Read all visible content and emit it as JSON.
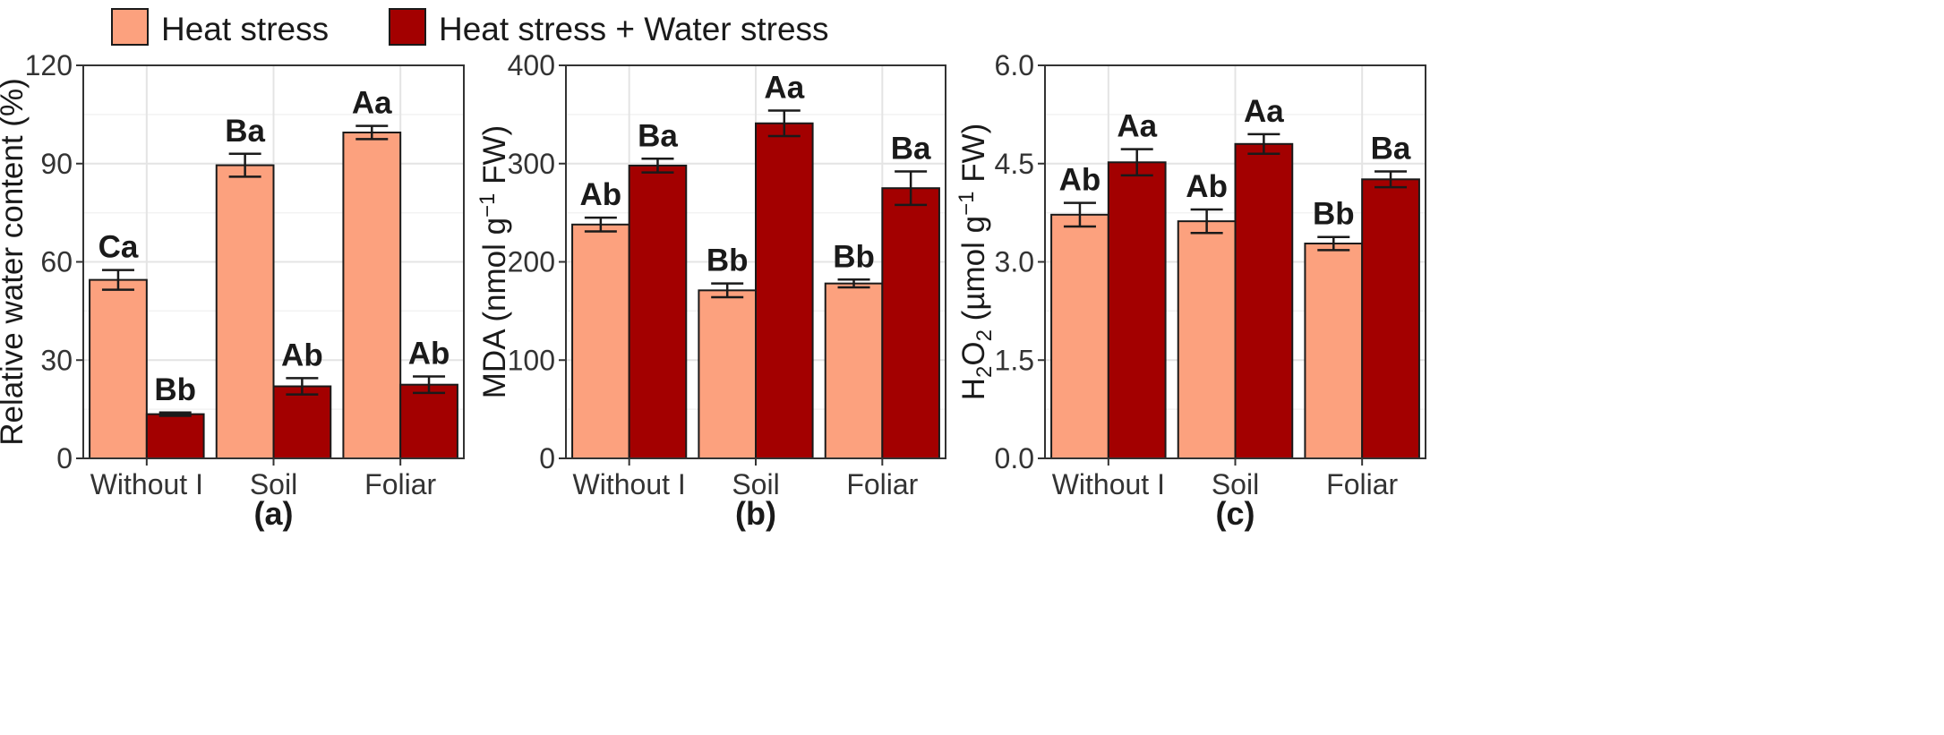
{
  "legend": {
    "items": [
      {
        "label": "Heat stress",
        "color": "#fca17e"
      },
      {
        "label": "Heat stress + Water stress",
        "color": "#a30000"
      }
    ]
  },
  "chart_data": [
    {
      "type": "bar",
      "panel_label": "(a)",
      "categories": [
        "Without I",
        "Soil",
        "Foliar"
      ],
      "ylabel": "Relative water content (%)",
      "ylim": [
        0,
        120
      ],
      "yticks": [
        0,
        30,
        60,
        90,
        120
      ],
      "ytick_labels": [
        "0",
        "30",
        "60",
        "90",
        "120"
      ],
      "grid": true,
      "series": [
        {
          "name": "Heat stress",
          "values": [
            54.5,
            89.5,
            99.5
          ],
          "errors": [
            3.0,
            3.5,
            2.0
          ],
          "labels": [
            "Ca",
            "Ba",
            "Aa"
          ]
        },
        {
          "name": "Heat stress + Water stress",
          "values": [
            13.5,
            22.0,
            22.5
          ],
          "errors": [
            0.5,
            2.5,
            2.5
          ],
          "labels": [
            "Bb",
            "Ab",
            "Ab"
          ]
        }
      ]
    },
    {
      "type": "bar",
      "panel_label": "(b)",
      "categories": [
        "Without I",
        "Soil",
        "Foliar"
      ],
      "ylabel_main": "MDA (nmol g",
      "ylabel_sup": "−1",
      "ylabel_tail": " FW)",
      "ylim": [
        0,
        400
      ],
      "yticks": [
        0,
        100,
        200,
        300,
        400
      ],
      "ytick_labels": [
        "0",
        "100",
        "200",
        "300",
        "400"
      ],
      "grid": true,
      "series": [
        {
          "name": "Heat stress",
          "values": [
            238,
            171,
            178
          ],
          "errors": [
            7,
            7,
            4
          ],
          "labels": [
            "Ab",
            "Bb",
            "Bb"
          ]
        },
        {
          "name": "Heat stress + Water stress",
          "values": [
            298,
            341,
            275
          ],
          "errors": [
            7,
            13,
            17
          ],
          "labels": [
            "Ba",
            "Aa",
            "Ba"
          ]
        }
      ]
    },
    {
      "type": "bar",
      "panel_label": "(c)",
      "categories": [
        "Without I",
        "Soil",
        "Foliar"
      ],
      "ylabel_main": "H",
      "ylabel_sub": "2",
      "ylabel_mid": "O",
      "ylabel_sub2": "2",
      "ylabel_rest": " (µmol g",
      "ylabel_sup": "−1",
      "ylabel_tail": " FW)",
      "ylim": [
        0,
        6
      ],
      "yticks": [
        0,
        1.5,
        3,
        4.5,
        6
      ],
      "ytick_labels": [
        "0.0",
        "1.5",
        "3.0",
        "4.5",
        "6.0"
      ],
      "grid": true,
      "series": [
        {
          "name": "Heat stress",
          "values": [
            3.72,
            3.62,
            3.28
          ],
          "errors": [
            0.18,
            0.18,
            0.1
          ],
          "labels": [
            "Ab",
            "Ab",
            "Bb"
          ]
        },
        {
          "name": "Heat stress + Water stress",
          "values": [
            4.52,
            4.8,
            4.26
          ],
          "errors": [
            0.2,
            0.15,
            0.12
          ],
          "labels": [
            "Aa",
            "Aa",
            "Ba"
          ]
        }
      ]
    }
  ]
}
